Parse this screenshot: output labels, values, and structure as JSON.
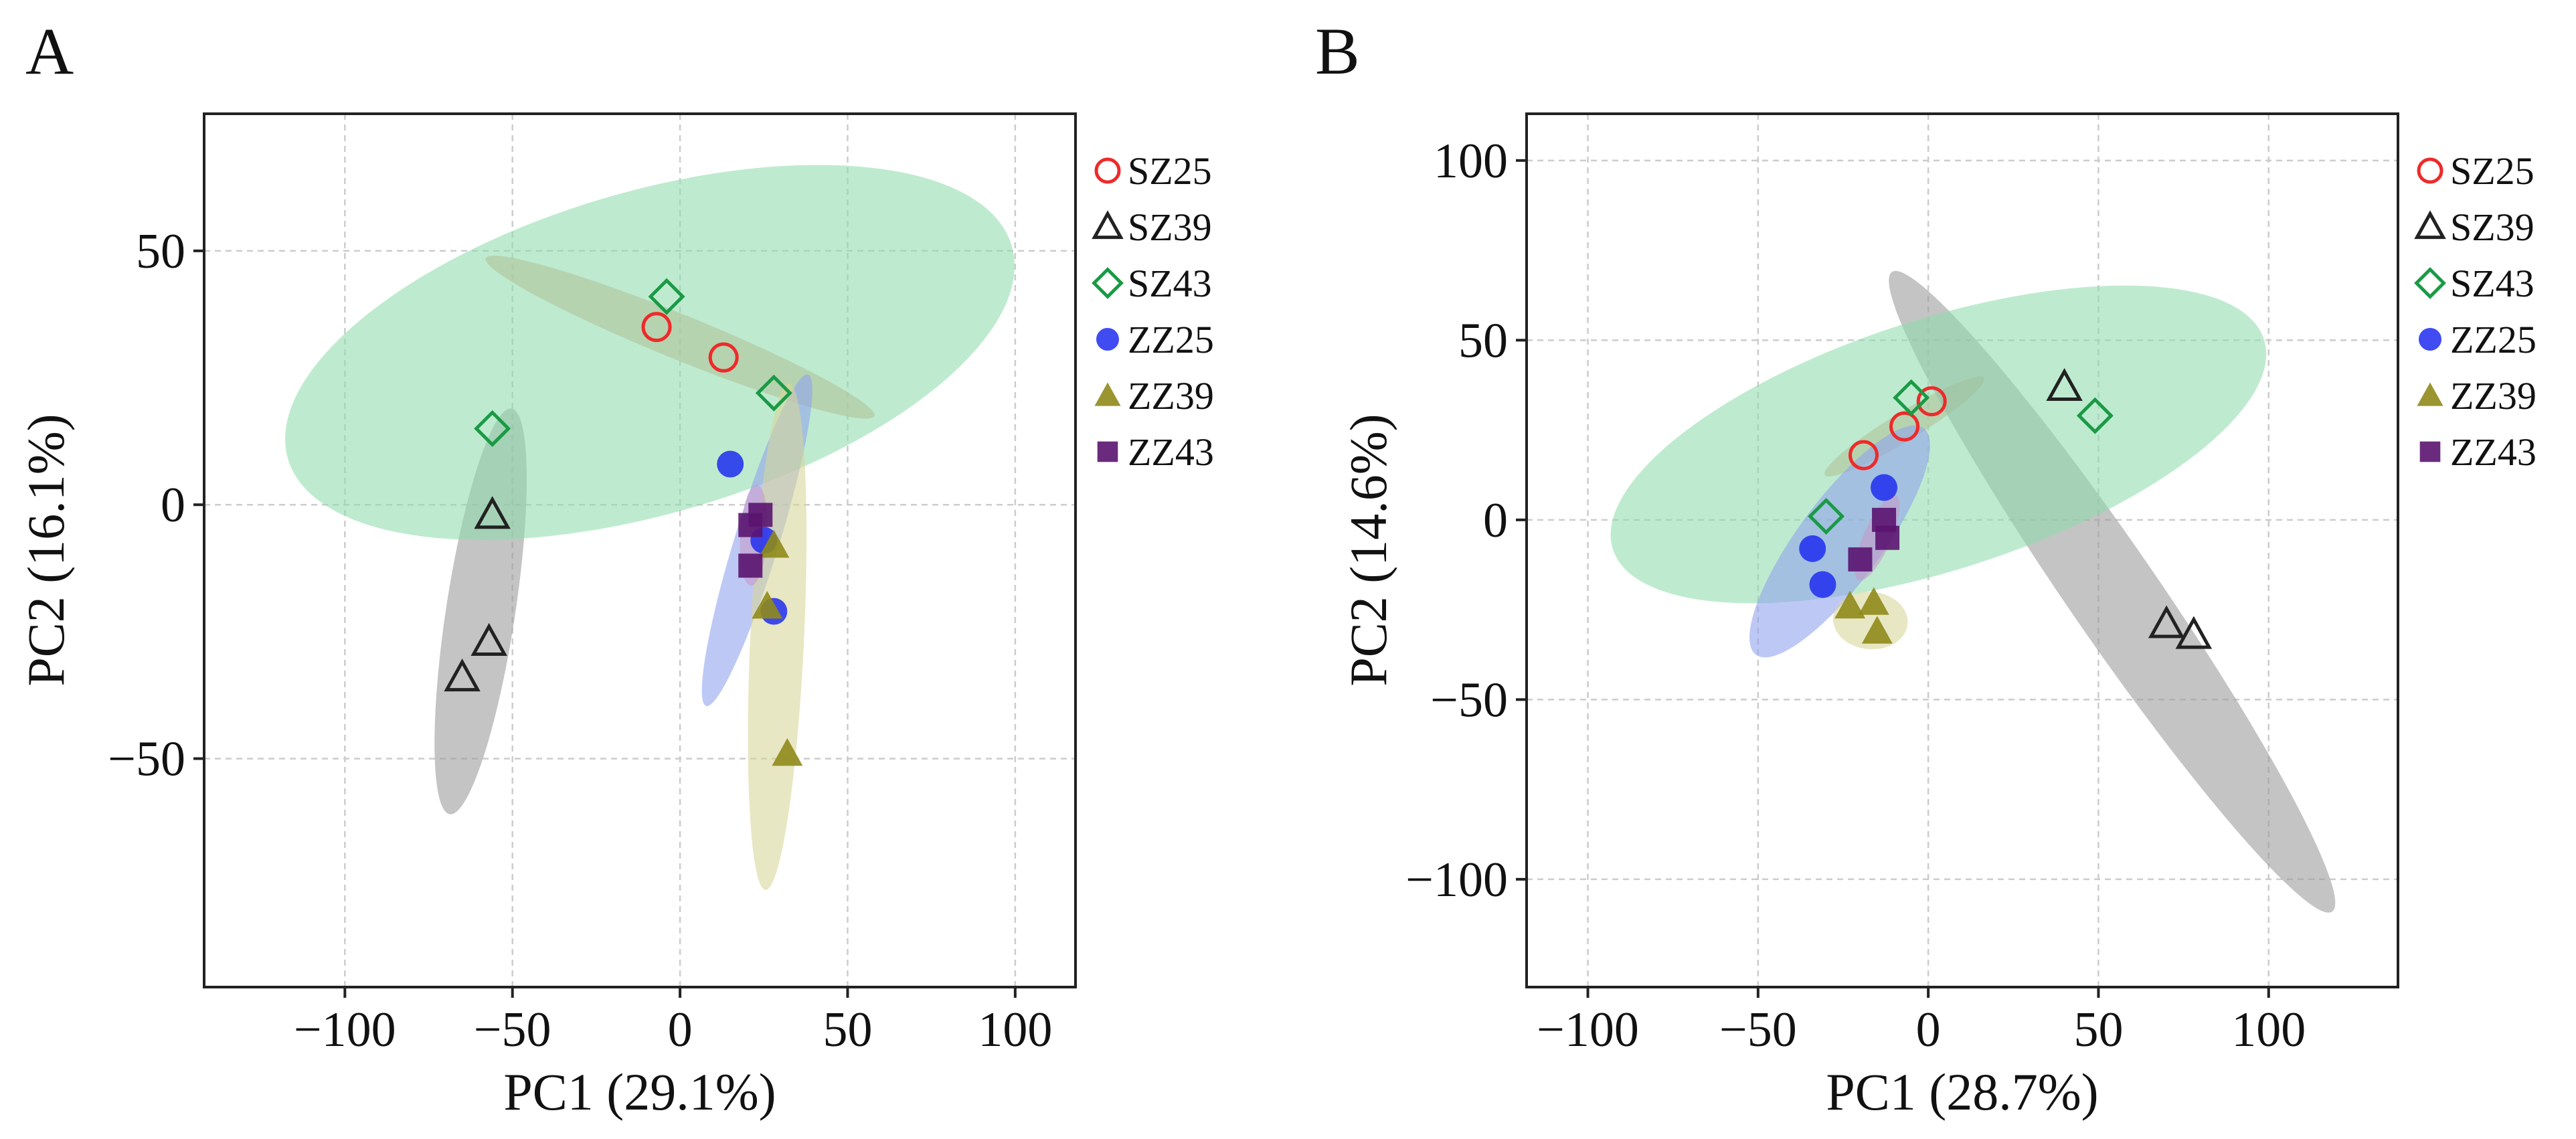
{
  "colors": {
    "SZ25": "#ee2a2a",
    "SZ39": "#222222",
    "SZ43": "#1a9a45",
    "ZZ25": "#1f2dee",
    "ZZ39": "#8f8a1a",
    "ZZ43": "#5a1470",
    "ellipse_SZ25": "#dd9f7f",
    "ellipse_SZ39": "#9a9a9a",
    "ellipse_SZ43": "#8fdcac",
    "ellipse_ZZ25": "#8fa0ee",
    "ellipse_ZZ39": "#d8d598",
    "ellipse_ZZ43": "#c49ac8",
    "grid": "#cccccc",
    "frame": "#222222"
  },
  "chart_data": [
    {
      "type": "scatter",
      "panel": "A",
      "xlabel": "PC1 (29.1%)",
      "ylabel": "PC2 (16.1%)",
      "xlim": [
        -142,
        118
      ],
      "ylim": [
        -95,
        77
      ],
      "xticks": [
        -100,
        -50,
        0,
        50,
        100
      ],
      "xtick_labels": [
        "−100",
        "−50",
        "0",
        "50",
        "100"
      ],
      "yticks": [
        -50,
        0,
        50
      ],
      "ytick_labels": [
        "−50",
        "0",
        "50"
      ],
      "grid": true,
      "legend_placement": "right",
      "legend": [
        "SZ25",
        "SZ39",
        "SZ43",
        "ZZ25",
        "ZZ39",
        "ZZ43"
      ],
      "series": [
        {
          "name": "SZ25",
          "marker": "circle-open",
          "points": [
            [
              -7,
              35
            ],
            [
              13,
              29
            ]
          ],
          "ellipse": {
            "cx": 0,
            "cy": 33,
            "rx": 60,
            "ry": 4.5,
            "angle": -15
          }
        },
        {
          "name": "SZ39",
          "marker": "triangle-open",
          "points": [
            [
              -56,
              -2
            ],
            [
              -57,
              -27
            ],
            [
              -65,
              -34
            ]
          ],
          "ellipse": {
            "cx": -59.5,
            "cy": -21,
            "rx": 41,
            "ry": 10,
            "angle": 77
          }
        },
        {
          "name": "SZ43",
          "marker": "diamond-open",
          "points": [
            [
              -56,
              15
            ],
            [
              -4,
              41
            ],
            [
              28,
              22
            ]
          ],
          "ellipse": {
            "cx": -9,
            "cy": 30,
            "rx": 110,
            "ry": 32,
            "angle": 11
          }
        },
        {
          "name": "ZZ25",
          "marker": "circle-filled",
          "points": [
            [
              15,
              8
            ],
            [
              25,
              -7
            ],
            [
              28,
              -21
            ]
          ],
          "ellipse": {
            "cx": 23,
            "cy": -7,
            "rx": 36,
            "ry": 6,
            "angle": 65
          }
        },
        {
          "name": "ZZ39",
          "marker": "triangle-filled",
          "points": [
            [
              28,
              -8
            ],
            [
              26,
              -20
            ],
            [
              32,
              -49
            ]
          ],
          "ellipse": {
            "cx": 29,
            "cy": -26,
            "rx": 50,
            "ry": 8,
            "angle": 86
          }
        },
        {
          "name": "ZZ43",
          "marker": "square-filled",
          "points": [
            [
              24,
              -2
            ],
            [
              21,
              -4
            ],
            [
              21,
              -12
            ]
          ],
          "ellipse": {
            "cx": 22,
            "cy": -6,
            "rx": 10,
            "ry": 4,
            "angle": 85
          }
        }
      ]
    },
    {
      "type": "scatter",
      "panel": "B",
      "xlabel": "PC1 (28.7%)",
      "ylabel": "PC2 (14.6%)",
      "xlim": [
        -118,
        138
      ],
      "ylim": [
        -130,
        113
      ],
      "xticks": [
        -100,
        -50,
        0,
        50,
        100
      ],
      "xtick_labels": [
        "−100",
        "−50",
        "0",
        "50",
        "100"
      ],
      "yticks": [
        -100,
        -50,
        0,
        50,
        100
      ],
      "ytick_labels": [
        "−100",
        "−50",
        "0",
        "50",
        "100"
      ],
      "grid": true,
      "legend_placement": "right",
      "legend": [
        "SZ25",
        "SZ39",
        "SZ43",
        "ZZ25",
        "ZZ39",
        "ZZ43"
      ],
      "series": [
        {
          "name": "SZ25",
          "marker": "circle-open",
          "points": [
            [
              -19,
              18
            ],
            [
              -7,
              26
            ],
            [
              1,
              33
            ]
          ],
          "ellipse": {
            "cx": -7,
            "cy": 26,
            "rx": 27,
            "ry": 4,
            "angle": 30
          }
        },
        {
          "name": "SZ39",
          "marker": "triangle-open",
          "points": [
            [
              40,
              37
            ],
            [
              70,
              -29
            ],
            [
              78,
              -32
            ]
          ],
          "ellipse": {
            "cx": 54,
            "cy": -20,
            "rx": 110,
            "ry": 13,
            "angle": -54
          }
        },
        {
          "name": "SZ43",
          "marker": "diamond-open",
          "points": [
            [
              -30,
              1
            ],
            [
              -5,
              34
            ],
            [
              49,
              29
            ]
          ],
          "ellipse": {
            "cx": 3,
            "cy": 21,
            "rx": 100,
            "ry": 35,
            "angle": 17
          }
        },
        {
          "name": "ZZ25",
          "marker": "circle-filled",
          "points": [
            [
              -34,
              -8
            ],
            [
              -31,
              -18
            ],
            [
              -13,
              9
            ]
          ],
          "ellipse": {
            "cx": -26,
            "cy": -6,
            "rx": 40,
            "ry": 12,
            "angle": 52
          }
        },
        {
          "name": "ZZ39",
          "marker": "triangle-filled",
          "points": [
            [
              -23,
              -24
            ],
            [
              -16,
              -23
            ],
            [
              -15,
              -31
            ]
          ],
          "ellipse": {
            "cx": -17,
            "cy": -28,
            "rx": 11,
            "ry": 8,
            "angle": -5
          }
        },
        {
          "name": "ZZ43",
          "marker": "square-filled",
          "points": [
            [
              -13,
              0
            ],
            [
              -12,
              -5
            ],
            [
              -20,
              -11
            ]
          ],
          "ellipse": {
            "cx": -15,
            "cy": -5,
            "rx": 13,
            "ry": 4,
            "angle": 65
          }
        }
      ]
    }
  ]
}
